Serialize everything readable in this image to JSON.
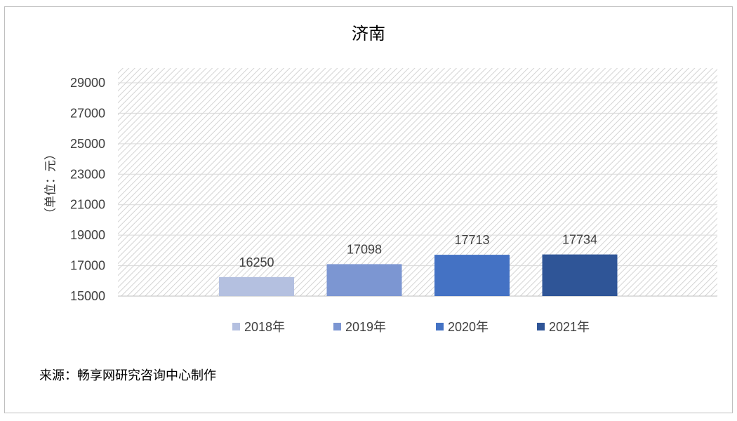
{
  "chart_data": {
    "type": "bar",
    "title": "济南",
    "ylabel": "（单位：元）",
    "xlabel": "",
    "ylim": [
      15000,
      30000
    ],
    "yticks": [
      15000,
      17000,
      19000,
      21000,
      23000,
      25000,
      27000,
      29000
    ],
    "series": [
      {
        "name": "2018年",
        "value": 16250,
        "color": "#b4c0e0"
      },
      {
        "name": "2019年",
        "value": 17098,
        "color": "#7c96d2"
      },
      {
        "name": "2020年",
        "value": 17713,
        "color": "#4472c4"
      },
      {
        "name": "2021年",
        "value": 17734,
        "color": "#2f5597"
      }
    ],
    "grid": true,
    "legend_position": "bottom",
    "plot_background": "diagonal-hatch"
  },
  "source_text": "来源：畅享网研究咨询中心制作"
}
